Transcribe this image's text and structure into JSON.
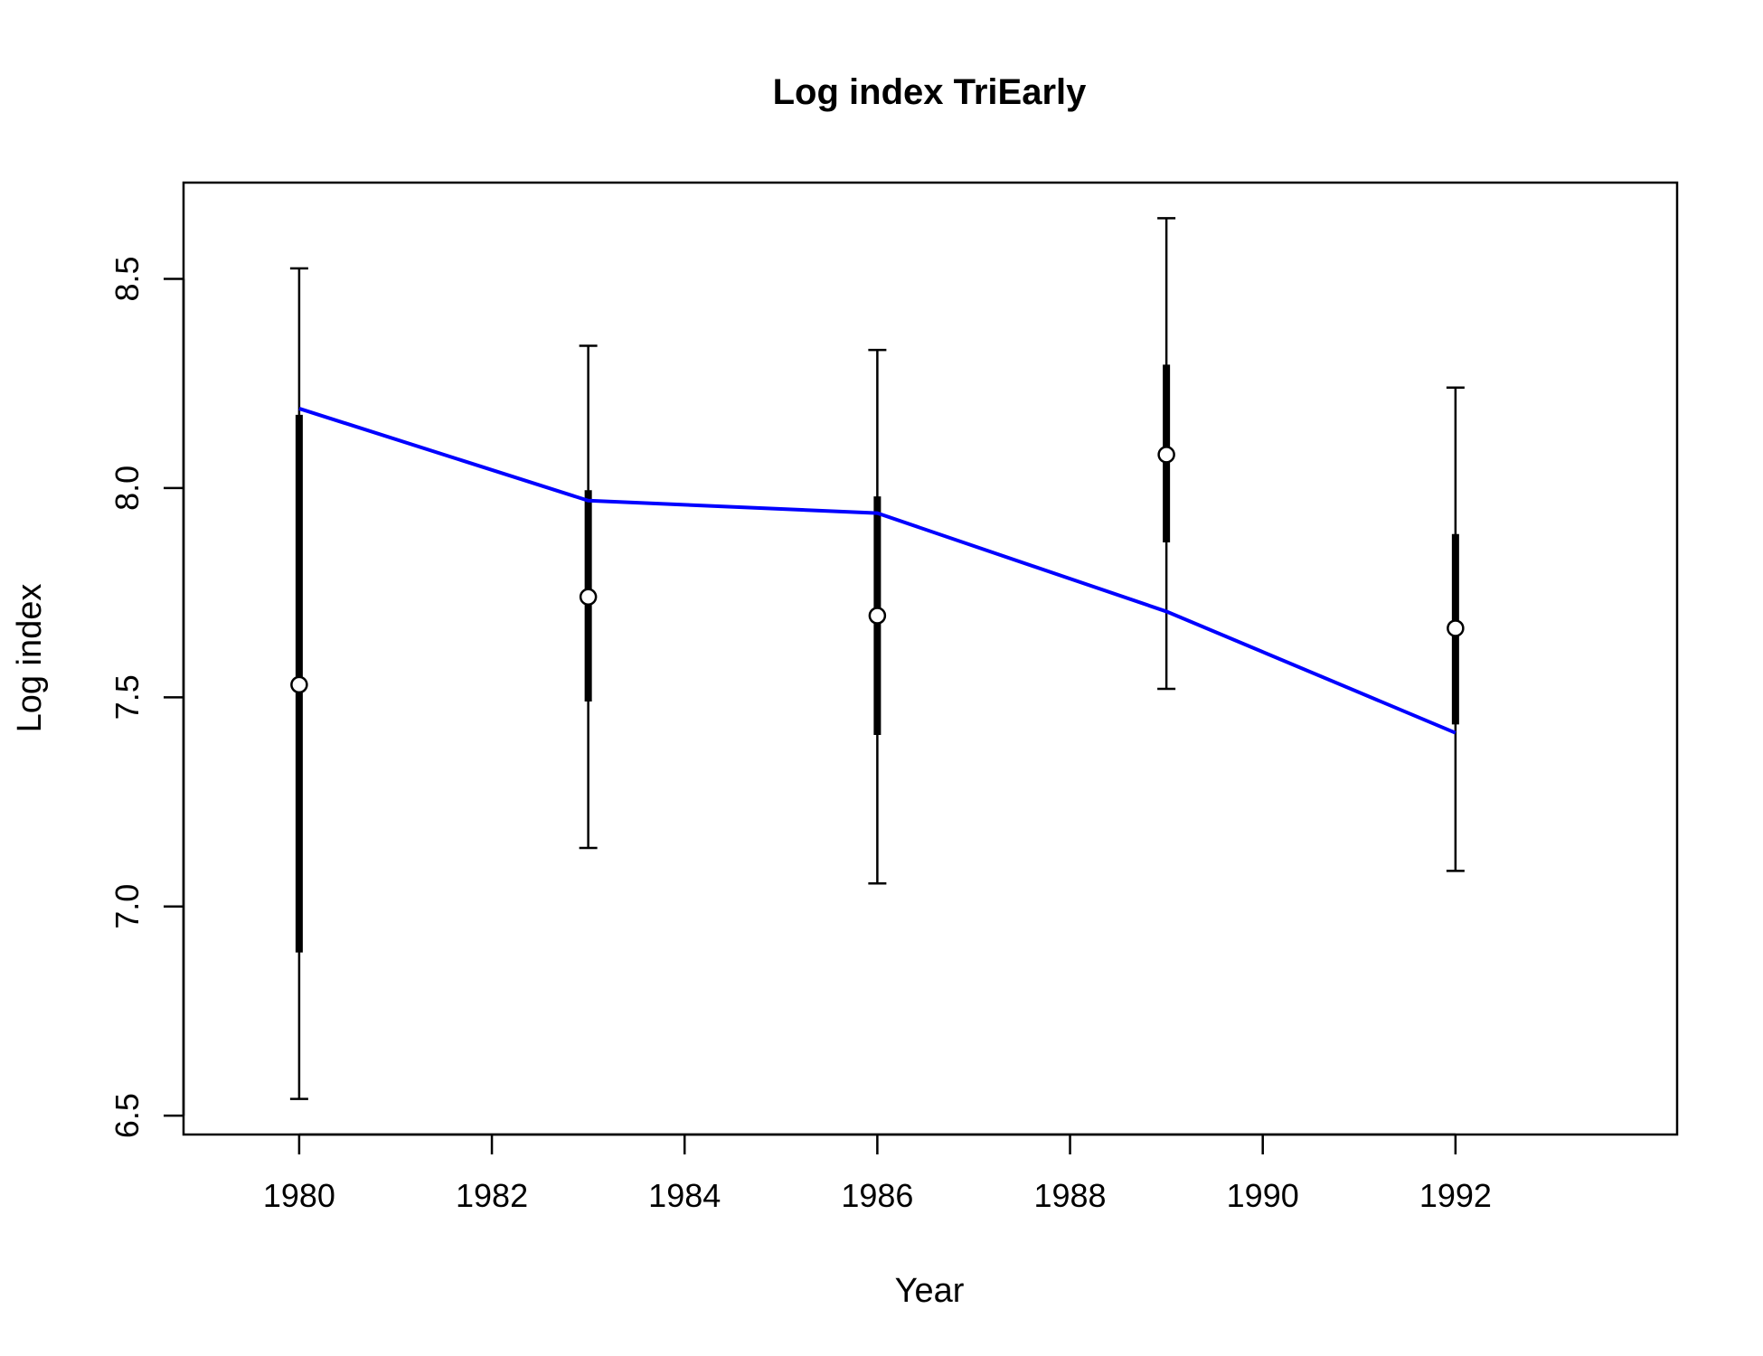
{
  "chart_data": {
    "type": "line",
    "title": "Log index TriEarly",
    "xlabel": "Year",
    "ylabel": "Log index",
    "xlim": [
      1978.8,
      1994.3
    ],
    "ylim": [
      6.455,
      8.73
    ],
    "x_ticks": [
      "1980",
      "1982",
      "1984",
      "1986",
      "1988",
      "1990",
      "1992"
    ],
    "y_ticks": [
      "6.5",
      "7.0",
      "7.5",
      "8.0",
      "8.5"
    ],
    "grid": false,
    "observed": {
      "x": [
        1980,
        1983,
        1986,
        1989,
        1992
      ],
      "y": [
        7.53,
        7.74,
        7.695,
        8.08,
        7.665
      ],
      "inner_lower": [
        6.89,
        7.49,
        7.41,
        7.87,
        7.435
      ],
      "inner_upper": [
        8.175,
        7.995,
        7.98,
        8.295,
        7.89
      ],
      "outer_lower": [
        6.54,
        7.14,
        7.055,
        7.52,
        7.085
      ],
      "outer_upper": [
        8.525,
        8.34,
        8.33,
        8.645,
        8.24
      ]
    },
    "fitted": {
      "x": [
        1980,
        1983,
        1986,
        1989,
        1992
      ],
      "y": [
        8.19,
        7.97,
        7.94,
        7.705,
        7.415
      ],
      "color": "#0000ff"
    }
  }
}
